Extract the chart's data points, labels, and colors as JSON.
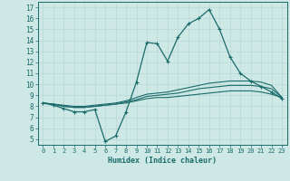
{
  "xlabel": "Humidex (Indice chaleur)",
  "xlim": [
    -0.5,
    23.5
  ],
  "ylim": [
    4.5,
    17.5
  ],
  "xticks": [
    0,
    1,
    2,
    3,
    4,
    5,
    6,
    7,
    8,
    9,
    10,
    11,
    12,
    13,
    14,
    15,
    16,
    17,
    18,
    19,
    20,
    21,
    22,
    23
  ],
  "yticks": [
    5,
    6,
    7,
    8,
    9,
    10,
    11,
    12,
    13,
    14,
    15,
    16,
    17
  ],
  "bg_color": "#cde8e5",
  "line_color": "#1a6b6b",
  "grid_color": "#b8d8d5",
  "line1_x": [
    0,
    1,
    2,
    3,
    4,
    5,
    6,
    7,
    8,
    9,
    10,
    11,
    12,
    13,
    14,
    15,
    16,
    17,
    18,
    19,
    20,
    21,
    22,
    23
  ],
  "line1_y": [
    8.3,
    8.1,
    7.8,
    7.5,
    7.5,
    7.7,
    4.8,
    5.3,
    7.5,
    10.2,
    13.8,
    13.7,
    12.1,
    14.3,
    15.5,
    16.0,
    16.8,
    15.0,
    12.5,
    11.0,
    10.3,
    9.8,
    9.3,
    8.7
  ],
  "line2_x": [
    0,
    1,
    2,
    3,
    4,
    5,
    6,
    7,
    8,
    9,
    10,
    11,
    12,
    13,
    14,
    15,
    16,
    17,
    18,
    19,
    20,
    21,
    22,
    23
  ],
  "line2_y": [
    8.3,
    8.2,
    8.1,
    8.0,
    8.0,
    8.1,
    8.2,
    8.3,
    8.5,
    8.8,
    9.1,
    9.2,
    9.3,
    9.5,
    9.7,
    9.9,
    10.1,
    10.2,
    10.3,
    10.3,
    10.3,
    10.2,
    9.9,
    8.8
  ],
  "line3_x": [
    0,
    1,
    2,
    3,
    4,
    5,
    6,
    7,
    8,
    9,
    10,
    11,
    12,
    13,
    14,
    15,
    16,
    17,
    18,
    19,
    20,
    21,
    22,
    23
  ],
  "line3_y": [
    8.3,
    8.2,
    8.0,
    7.9,
    7.9,
    8.0,
    8.1,
    8.2,
    8.4,
    8.6,
    8.9,
    9.0,
    9.1,
    9.2,
    9.4,
    9.6,
    9.7,
    9.8,
    9.9,
    9.9,
    9.9,
    9.8,
    9.6,
    8.8
  ],
  "line4_x": [
    0,
    1,
    2,
    3,
    4,
    5,
    6,
    7,
    8,
    9,
    10,
    11,
    12,
    13,
    14,
    15,
    16,
    17,
    18,
    19,
    20,
    21,
    22,
    23
  ],
  "line4_y": [
    8.3,
    8.2,
    8.0,
    7.9,
    7.9,
    8.0,
    8.1,
    8.2,
    8.3,
    8.5,
    8.7,
    8.8,
    8.8,
    8.9,
    9.0,
    9.1,
    9.2,
    9.3,
    9.4,
    9.4,
    9.4,
    9.3,
    9.1,
    8.8
  ]
}
